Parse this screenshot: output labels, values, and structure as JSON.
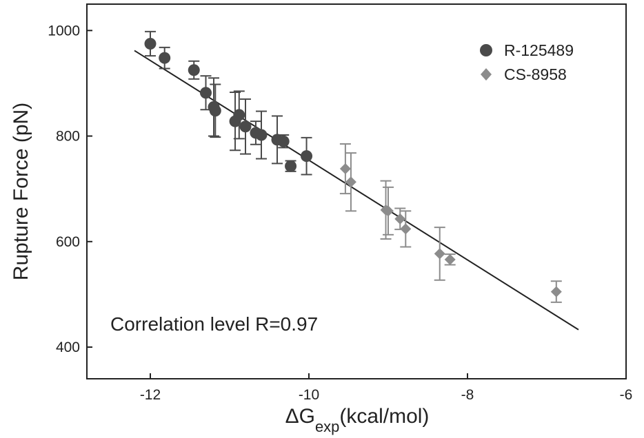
{
  "chart_data": {
    "type": "scatter",
    "title": "",
    "xlabel": {
      "base": "ΔG",
      "sub": "exp",
      "rest": "(kcal/mol)"
    },
    "ylabel": "Rupture Force (pN)",
    "xlim": [
      -12.8,
      -6
    ],
    "ylim": [
      340,
      1050
    ],
    "xticks": [
      -12,
      -10,
      -8,
      -6
    ],
    "yticks": [
      400,
      600,
      800,
      1000
    ],
    "xtick_labels": [
      "-12",
      "-10",
      "-8",
      "-6"
    ],
    "ytick_labels": [
      "400",
      "600",
      "800",
      "1000"
    ],
    "grid": false,
    "legend_position": "top-right",
    "annotation": "Correlation level R=0.97",
    "fit_line": {
      "x": [
        -12.2,
        -6.6
      ],
      "y": [
        962,
        433
      ]
    },
    "series": [
      {
        "name": "R-125489",
        "marker": "circle",
        "color": "#4a4a4a",
        "errcolor": "#4a4a4a",
        "points": [
          {
            "x": -12.0,
            "y": 975,
            "err": 23
          },
          {
            "x": -11.82,
            "y": 948,
            "err": 20
          },
          {
            "x": -11.45,
            "y": 925,
            "err": 17
          },
          {
            "x": -11.3,
            "y": 882,
            "err": 32
          },
          {
            "x": -11.2,
            "y": 855,
            "err": 55
          },
          {
            "x": -11.18,
            "y": 848,
            "err": 50
          },
          {
            "x": -10.93,
            "y": 828,
            "err": 55
          },
          {
            "x": -10.88,
            "y": 840,
            "err": 45
          },
          {
            "x": -10.8,
            "y": 818,
            "err": 52
          },
          {
            "x": -10.67,
            "y": 806,
            "err": 22
          },
          {
            "x": -10.6,
            "y": 802,
            "err": 45
          },
          {
            "x": -10.4,
            "y": 793,
            "err": 45
          },
          {
            "x": -10.32,
            "y": 790,
            "err": 12
          },
          {
            "x": -10.23,
            "y": 743,
            "err": 10
          },
          {
            "x": -10.03,
            "y": 762,
            "err": 35
          }
        ]
      },
      {
        "name": "CS-8958",
        "marker": "diamond",
        "color": "#8c8c8c",
        "errcolor": "#8c8c8c",
        "points": [
          {
            "x": -9.54,
            "y": 738,
            "err": 47
          },
          {
            "x": -9.47,
            "y": 713,
            "err": 55
          },
          {
            "x": -9.03,
            "y": 660,
            "err": 55
          },
          {
            "x": -9.0,
            "y": 658,
            "err": 45
          },
          {
            "x": -8.85,
            "y": 643,
            "err": 20
          },
          {
            "x": -8.78,
            "y": 624,
            "err": 34
          },
          {
            "x": -8.35,
            "y": 577,
            "err": 50
          },
          {
            "x": -8.22,
            "y": 566,
            "err": 10
          },
          {
            "x": -6.88,
            "y": 505,
            "err": 20
          }
        ]
      }
    ]
  }
}
